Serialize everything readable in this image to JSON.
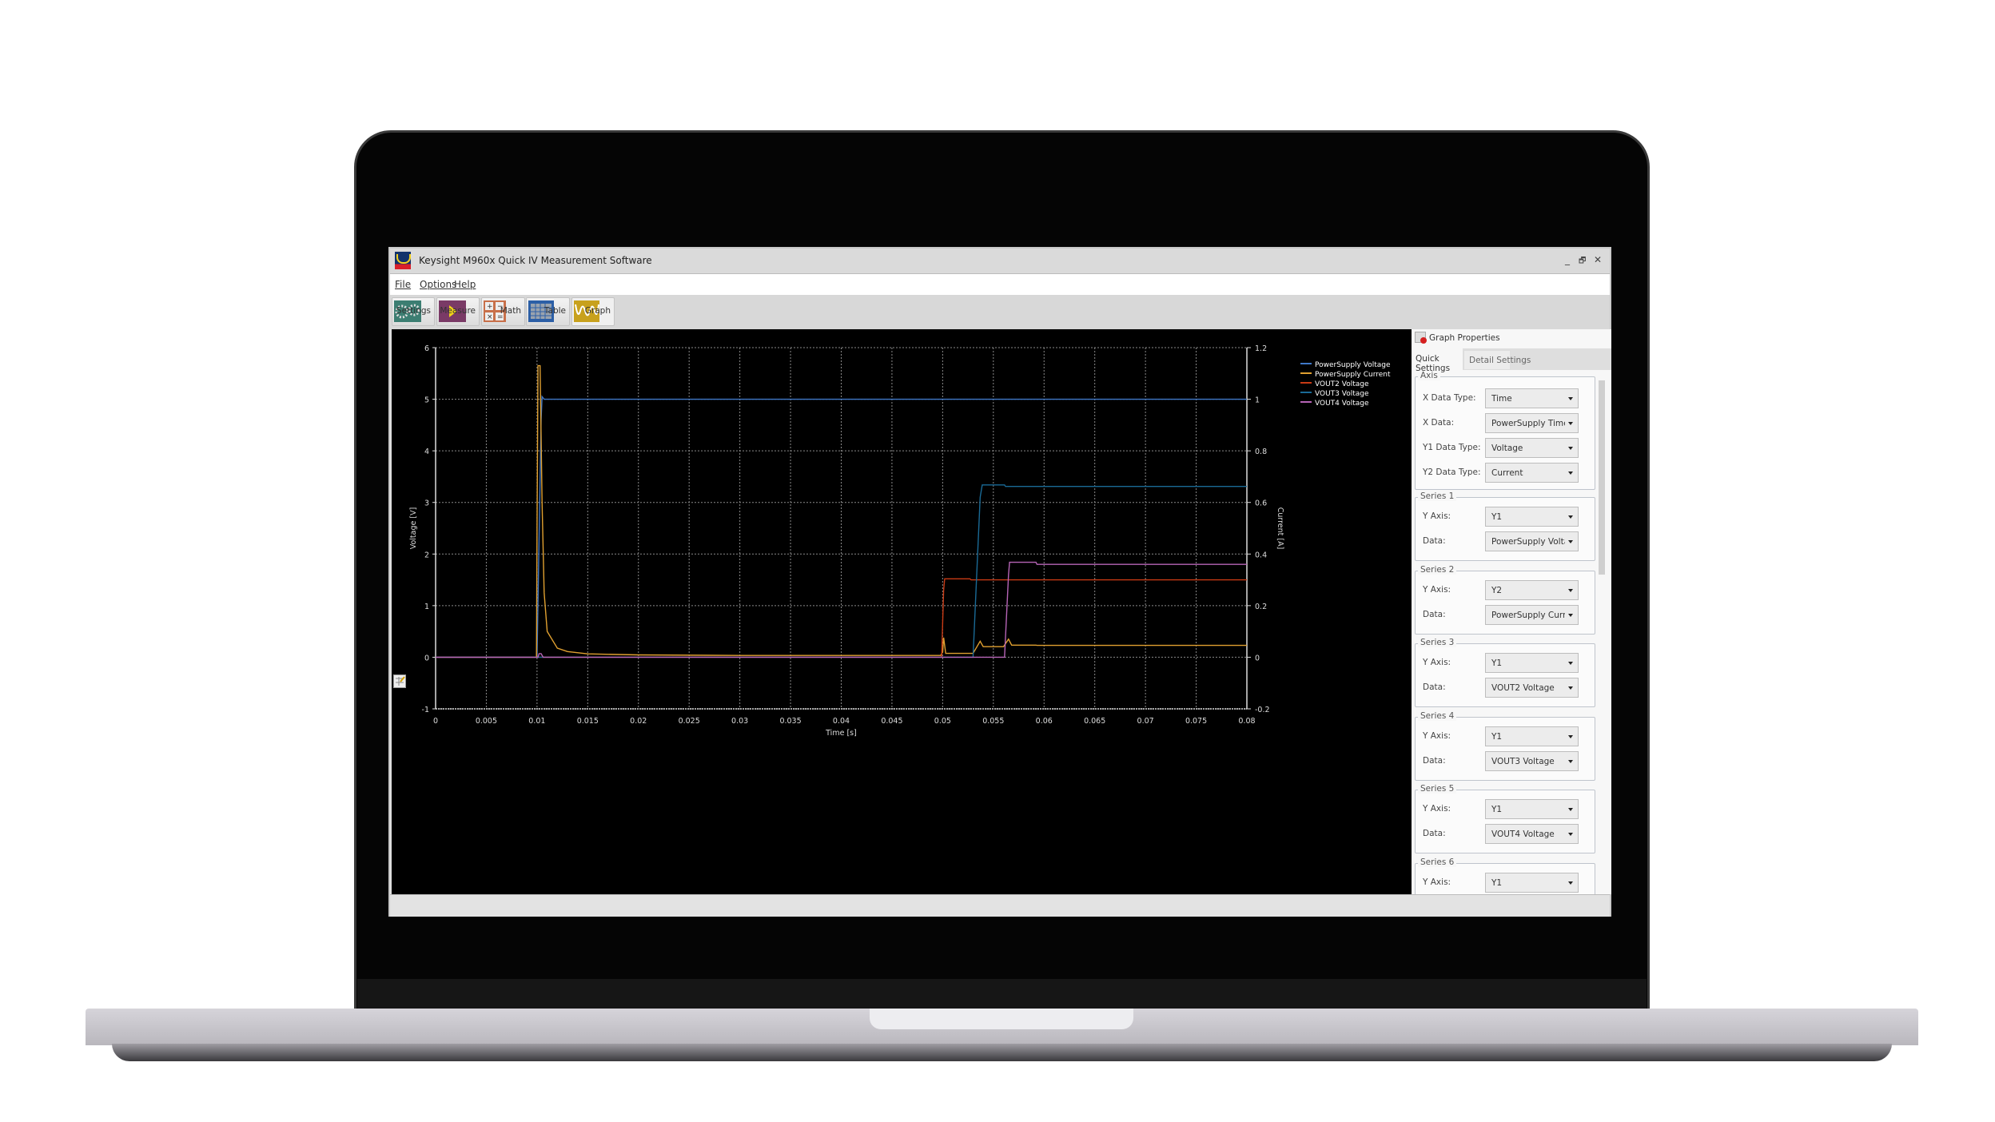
{
  "window": {
    "title": "Keysight M960x Quick IV Measurement Software",
    "minimize": "_",
    "restore": "🗗",
    "close": "✕"
  },
  "menu": [
    "File",
    "Options",
    "Help"
  ],
  "toolbar": [
    {
      "label": "Settings",
      "icon": "gears-icon",
      "color": "#3c7e72"
    },
    {
      "label": "Measure",
      "icon": "play-icon",
      "color": "#7a3a66"
    },
    {
      "label": "Math",
      "icon": "calculator-icon",
      "color": "#c8704a"
    },
    {
      "label": "Table",
      "icon": "table-icon",
      "color": "#2c5fa6"
    },
    {
      "label": "Graph",
      "icon": "sine-wave-icon",
      "color": "#c8a11c"
    }
  ],
  "panel": {
    "title": "Graph Properties",
    "tabs": [
      {
        "label": "Quick Settings",
        "active": true
      },
      {
        "label": "Detail Settings",
        "active": false
      }
    ],
    "axis": {
      "legend": "Axis",
      "rows": [
        {
          "label": "X Data Type:",
          "value": "Time"
        },
        {
          "label": "X Data:",
          "value": "PowerSupply Time"
        },
        {
          "label": "Y1 Data Type:",
          "value": "Voltage"
        },
        {
          "label": "Y2 Data Type:",
          "value": "Current"
        }
      ]
    },
    "series": [
      {
        "legend": "Series 1",
        "y_axis_label": "Y Axis:",
        "y_axis": "Y1",
        "data_label": "Data:",
        "data": "PowerSupply Voltage"
      },
      {
        "legend": "Series 2",
        "y_axis_label": "Y Axis:",
        "y_axis": "Y2",
        "data_label": "Data:",
        "data": "PowerSupply Current"
      },
      {
        "legend": "Series 3",
        "y_axis_label": "Y Axis:",
        "y_axis": "Y1",
        "data_label": "Data:",
        "data": "VOUT2 Voltage"
      },
      {
        "legend": "Series 4",
        "y_axis_label": "Y Axis:",
        "y_axis": "Y1",
        "data_label": "Data:",
        "data": "VOUT3 Voltage"
      },
      {
        "legend": "Series 5",
        "y_axis_label": "Y Axis:",
        "y_axis": "Y1",
        "data_label": "Data:",
        "data": "VOUT4 Voltage"
      },
      {
        "legend": "Series 6",
        "y_axis_label": "Y Axis:",
        "y_axis": "Y1"
      }
    ]
  },
  "chart_data": {
    "type": "line",
    "xlabel": "Time [s]",
    "ylabel": "Voltage [V]",
    "y2label": "Current [A]",
    "xlim": [
      0,
      0.08
    ],
    "ylim": [
      -1,
      6
    ],
    "y2lim": [
      -0.2,
      1.2
    ],
    "xticks": [
      "0",
      "0.005",
      "0.01",
      "0.015",
      "0.02",
      "0.025",
      "0.03",
      "0.035",
      "0.04",
      "0.045",
      "0.05",
      "0.055",
      "0.06",
      "0.065",
      "0.07",
      "0.075",
      "0.08"
    ],
    "yticks": [
      "-1",
      "0",
      "1",
      "2",
      "3",
      "4",
      "5",
      "6"
    ],
    "y2ticks": [
      "-0.2",
      "0",
      "0.2",
      "0.4",
      "0.6",
      "0.8",
      "1",
      "1.2"
    ],
    "grid": true,
    "legend_position": "top-right",
    "series": [
      {
        "name": "PowerSupply Voltage",
        "axis": "y",
        "color": "#3f78c8",
        "points": [
          [
            0,
            0
          ],
          [
            0.01,
            0
          ],
          [
            0.0104,
            4.6
          ],
          [
            0.0105,
            5.05
          ],
          [
            0.0107,
            5.0
          ],
          [
            0.08,
            5.0
          ]
        ]
      },
      {
        "name": "PowerSupply Current",
        "axis": "y2",
        "color": "#e0a030",
        "points": [
          [
            0,
            0
          ],
          [
            0.00995,
            0
          ],
          [
            0.01,
            0.5
          ],
          [
            0.0101,
            1.13
          ],
          [
            0.0103,
            1.13
          ],
          [
            0.0105,
            0.6
          ],
          [
            0.0107,
            0.25
          ],
          [
            0.011,
            0.1
          ],
          [
            0.012,
            0.035
          ],
          [
            0.013,
            0.022
          ],
          [
            0.015,
            0.013
          ],
          [
            0.02,
            0.009
          ],
          [
            0.03,
            0.007
          ],
          [
            0.0498,
            0.007
          ],
          [
            0.05,
            0.02
          ],
          [
            0.0501,
            0.076
          ],
          [
            0.0503,
            0.015
          ],
          [
            0.053,
            0.015
          ],
          [
            0.0537,
            0.062
          ],
          [
            0.054,
            0.041
          ],
          [
            0.056,
            0.041
          ],
          [
            0.0565,
            0.07
          ],
          [
            0.0568,
            0.047
          ],
          [
            0.0592,
            0.047
          ],
          [
            0.0593,
            0.046
          ],
          [
            0.08,
            0.046
          ]
        ]
      },
      {
        "name": "VOUT2 Voltage",
        "axis": "y",
        "color": "#c83a14",
        "points": [
          [
            0,
            0
          ],
          [
            0.0499,
            0
          ],
          [
            0.0501,
            1.3
          ],
          [
            0.0502,
            1.52
          ],
          [
            0.0527,
            1.52
          ],
          [
            0.0528,
            1.5
          ],
          [
            0.08,
            1.5
          ]
        ]
      },
      {
        "name": "VOUT3 Voltage",
        "axis": "y",
        "color": "#1a6a96",
        "points": [
          [
            0,
            0
          ],
          [
            0.053,
            0
          ],
          [
            0.0537,
            3.1
          ],
          [
            0.0539,
            3.34
          ],
          [
            0.0561,
            3.34
          ],
          [
            0.0562,
            3.31
          ],
          [
            0.08,
            3.31
          ]
        ]
      },
      {
        "name": "VOUT4 Voltage",
        "axis": "y",
        "color": "#b664b6",
        "points": [
          [
            0,
            0
          ],
          [
            0.0101,
            0
          ],
          [
            0.0102,
            0.07
          ],
          [
            0.0104,
            0.07
          ],
          [
            0.0106,
            0
          ],
          [
            0.0561,
            0
          ],
          [
            0.0565,
            1.6
          ],
          [
            0.0566,
            1.84
          ],
          [
            0.0592,
            1.84
          ],
          [
            0.0593,
            1.8
          ],
          [
            0.08,
            1.8
          ]
        ]
      }
    ]
  }
}
